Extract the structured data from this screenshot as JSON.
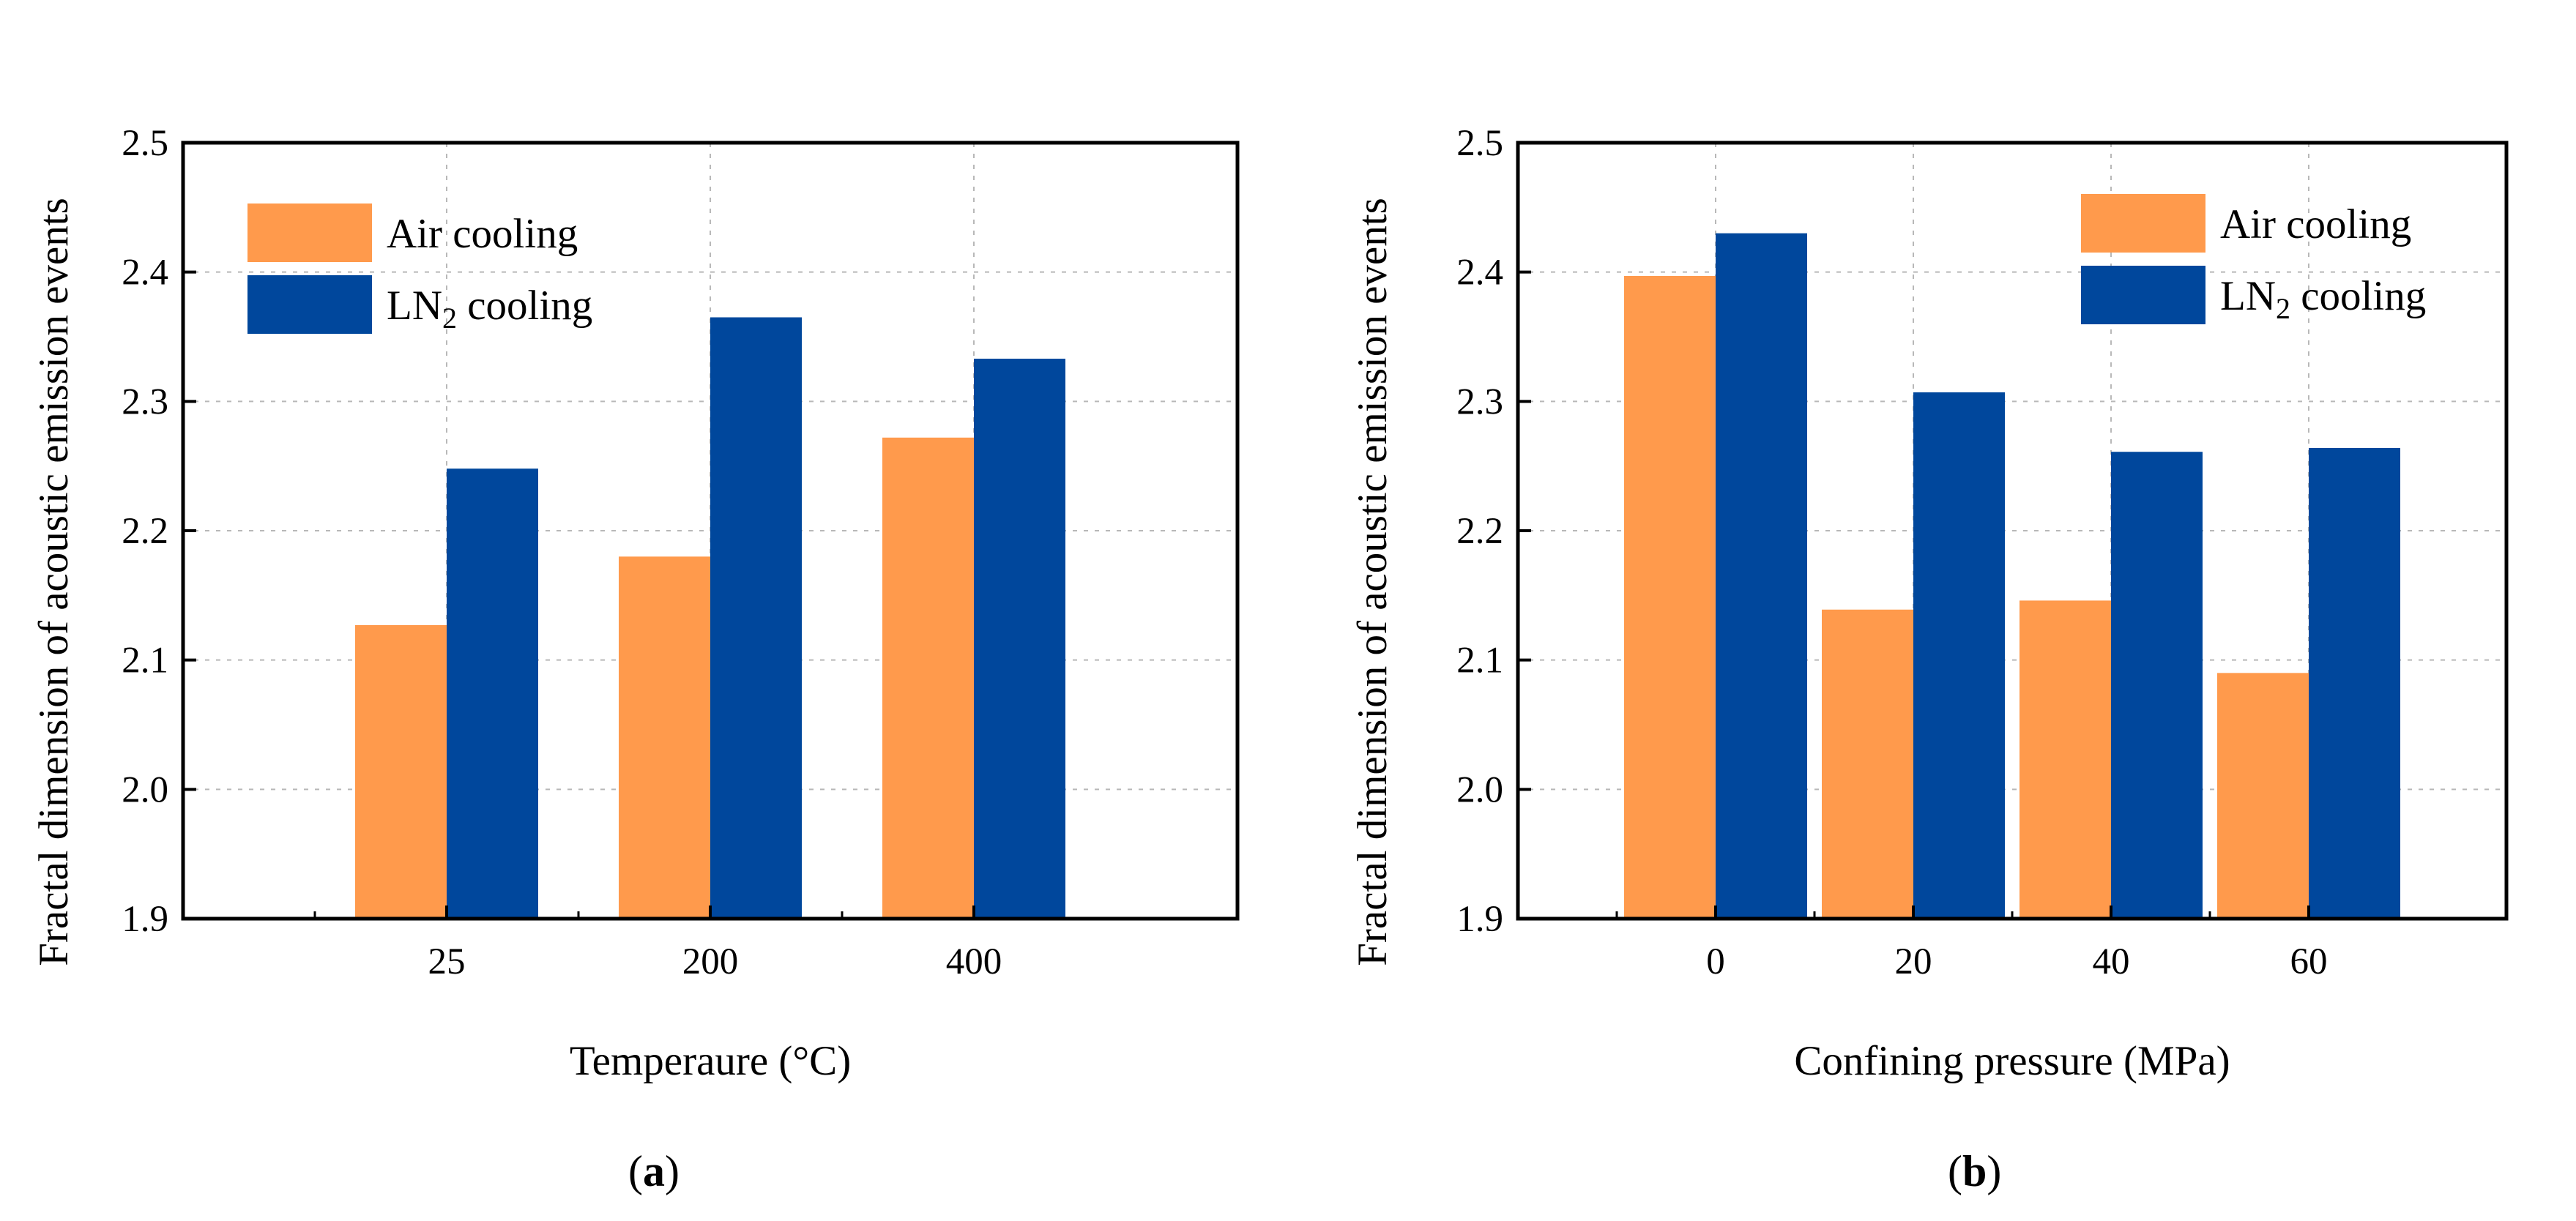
{
  "chart_data": [
    {
      "type": "bar",
      "panel_label": "a",
      "categories": [
        "25",
        "200",
        "400"
      ],
      "series": [
        {
          "name": "Air cooling",
          "color": "#FF9A4C",
          "values": [
            2.127,
            2.18,
            2.272
          ]
        },
        {
          "name": "LN2 cooling",
          "color": "#00479C",
          "values": [
            2.248,
            2.365,
            2.333
          ]
        }
      ],
      "xlabel": "Temperaure (°C)",
      "ylabel": "Fractal dimension of acoustic emission events",
      "ylim": [
        1.9,
        2.5
      ],
      "yticks": [
        "1.9",
        "2.0",
        "2.1",
        "2.2",
        "2.3",
        "2.4",
        "2.5"
      ],
      "grid": true,
      "legend_position": "top-left"
    },
    {
      "type": "bar",
      "panel_label": "b",
      "categories": [
        "0",
        "20",
        "40",
        "60"
      ],
      "series": [
        {
          "name": "Air cooling",
          "color": "#FF9A4C",
          "values": [
            2.397,
            2.139,
            2.146,
            2.09
          ]
        },
        {
          "name": "LN2 cooling",
          "color": "#00479C",
          "values": [
            2.43,
            2.307,
            2.261,
            2.264
          ]
        }
      ],
      "xlabel": "Confining pressure (MPa)",
      "ylabel": "Fractal dimension of acoustic emission events",
      "ylim": [
        1.9,
        2.5
      ],
      "yticks": [
        "1.9",
        "2.0",
        "2.1",
        "2.2",
        "2.3",
        "2.4",
        "2.5"
      ],
      "grid": true,
      "legend_position": "top-right"
    }
  ]
}
